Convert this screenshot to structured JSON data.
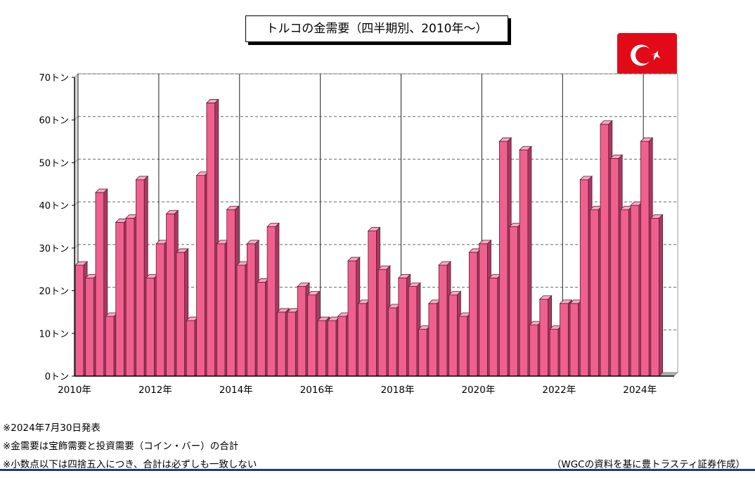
{
  "title": "トルコの金需要（四半期別、2010年～）",
  "notes": [
    "※2024年7月30日発表",
    "※金需要は宝飾需要と投資需要（コイン・バー）の合計",
    "※小数点以下は四捨五入につき、合計は必ずしも一致しない"
  ],
  "source": "（WGCの資料を基に豊トラスティ証券作成）",
  "flag": {
    "name": "turkey-flag",
    "color": "#e30a17"
  },
  "chart_data": {
    "type": "bar",
    "unit": "トン",
    "ylim": [
      0,
      70
    ],
    "yticks": [
      0,
      10,
      20,
      30,
      40,
      50,
      60,
      70
    ],
    "ytick_labels": [
      "0トン",
      "10トン",
      "20トン",
      "30トン",
      "40トン",
      "50トン",
      "60トン",
      "70トン"
    ],
    "xtick_labels": [
      "2010年",
      "2012年",
      "2014年",
      "2016年",
      "2018年",
      "2020年",
      "2022年",
      "2024年"
    ],
    "bar_color": "#f0608f",
    "grid": true,
    "values": [
      26,
      23,
      43,
      14,
      36,
      37,
      46,
      23,
      31,
      38,
      29,
      13,
      47,
      64,
      31,
      39,
      26,
      31,
      22,
      35,
      15,
      15,
      21,
      19,
      13,
      13,
      14,
      27,
      17,
      34,
      25,
      16,
      23,
      21,
      11,
      17,
      26,
      19,
      14,
      29,
      31,
      23,
      55,
      35,
      53,
      12,
      18,
      11,
      17,
      17,
      46,
      39,
      59,
      51,
      39,
      40,
      55,
      37
    ]
  }
}
